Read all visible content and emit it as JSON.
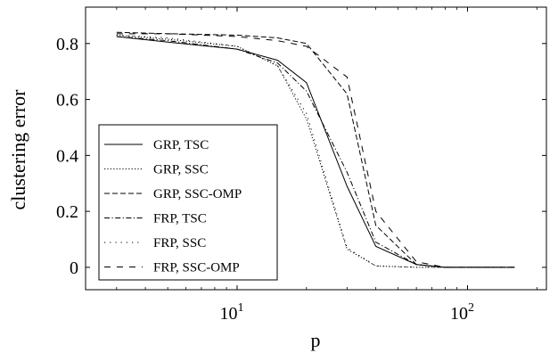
{
  "chart_data": {
    "type": "line",
    "xlabel": "p",
    "ylabel": "clustering error",
    "x_scale": "log",
    "xlim": [
      2.2,
      220
    ],
    "ylim": [
      -0.08,
      0.93
    ],
    "x_ticks": [
      {
        "value": 10,
        "base": "10",
        "exp": "1"
      },
      {
        "value": 100,
        "base": "10",
        "exp": "2"
      }
    ],
    "y_ticks": [
      {
        "value": 0,
        "label": "0"
      },
      {
        "value": 0.2,
        "label": "0.2"
      },
      {
        "value": 0.4,
        "label": "0.4"
      },
      {
        "value": 0.6,
        "label": "0.6"
      },
      {
        "value": 0.8,
        "label": "0.8"
      }
    ],
    "grid": false,
    "legend_position": "lower-left",
    "series": [
      {
        "name": "GRP, TSC",
        "style": "solid",
        "x": [
          3,
          5,
          10,
          15,
          20,
          30,
          40,
          60,
          80,
          100,
          160
        ],
        "y": [
          0.825,
          0.805,
          0.78,
          0.74,
          0.66,
          0.29,
          0.075,
          0.01,
          0.0,
          0.0,
          0.0
        ]
      },
      {
        "name": "GRP, SSC",
        "style": "dotted",
        "x": [
          3,
          5,
          10,
          15,
          20,
          30,
          40,
          60,
          80,
          100,
          160
        ],
        "y": [
          0.83,
          0.815,
          0.79,
          0.72,
          0.53,
          0.065,
          0.005,
          0.0,
          0.0,
          0.0,
          0.0
        ]
      },
      {
        "name": "GRP, SSC-OMP",
        "style": "dashed",
        "x": [
          3,
          5,
          10,
          15,
          20,
          30,
          40,
          60,
          80,
          100,
          160
        ],
        "y": [
          0.84,
          0.835,
          0.83,
          0.82,
          0.8,
          0.62,
          0.15,
          0.01,
          0.0,
          0.0,
          0.0
        ]
      },
      {
        "name": "FRP, TSC",
        "style": "dashdot",
        "x": [
          3,
          5,
          10,
          15,
          20,
          30,
          40,
          60,
          80,
          100,
          160
        ],
        "y": [
          0.825,
          0.81,
          0.78,
          0.73,
          0.63,
          0.34,
          0.09,
          0.01,
          0.0,
          0.0,
          0.0
        ]
      },
      {
        "name": "FRP, SSC",
        "style": "loosely-dotted",
        "x": [
          3,
          5,
          10,
          15,
          20,
          30,
          40,
          60,
          80,
          100,
          160
        ],
        "y": [
          0.83,
          0.82,
          0.79,
          0.72,
          0.55,
          0.07,
          0.005,
          0.0,
          0.0,
          0.0,
          0.0
        ]
      },
      {
        "name": "FRP, SSC-OMP",
        "style": "loosely-dashed",
        "x": [
          3,
          5,
          10,
          15,
          20,
          30,
          40,
          60,
          80,
          100,
          160
        ],
        "y": [
          0.835,
          0.835,
          0.825,
          0.81,
          0.79,
          0.68,
          0.2,
          0.02,
          0.0,
          0.0,
          0.0
        ]
      }
    ]
  }
}
